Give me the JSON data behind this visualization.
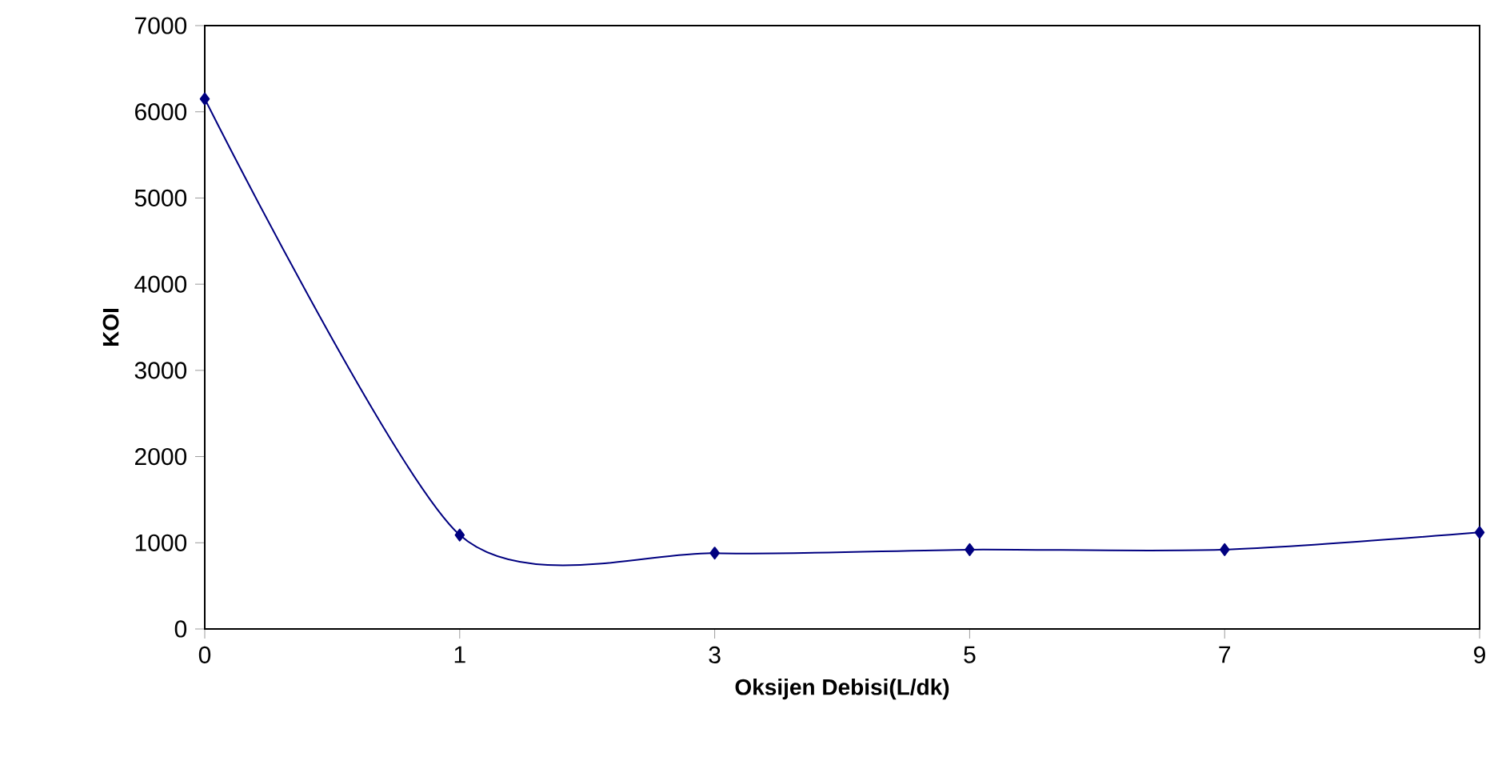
{
  "chart_data": {
    "type": "line",
    "xlabel": "Oksijen Debisi(L/dk)",
    "ylabel": "KOI",
    "categories": [
      "0",
      "1",
      "3",
      "5",
      "7",
      "9"
    ],
    "series": [
      {
        "color": "#000080",
        "values": [
          6150,
          1090,
          880,
          920,
          920,
          1120
        ]
      }
    ],
    "ylim": [
      0,
      7000
    ],
    "yticks": [
      0,
      1000,
      2000,
      3000,
      4000,
      5000,
      6000,
      7000
    ],
    "marker": "diamond",
    "line_style": "solid"
  }
}
